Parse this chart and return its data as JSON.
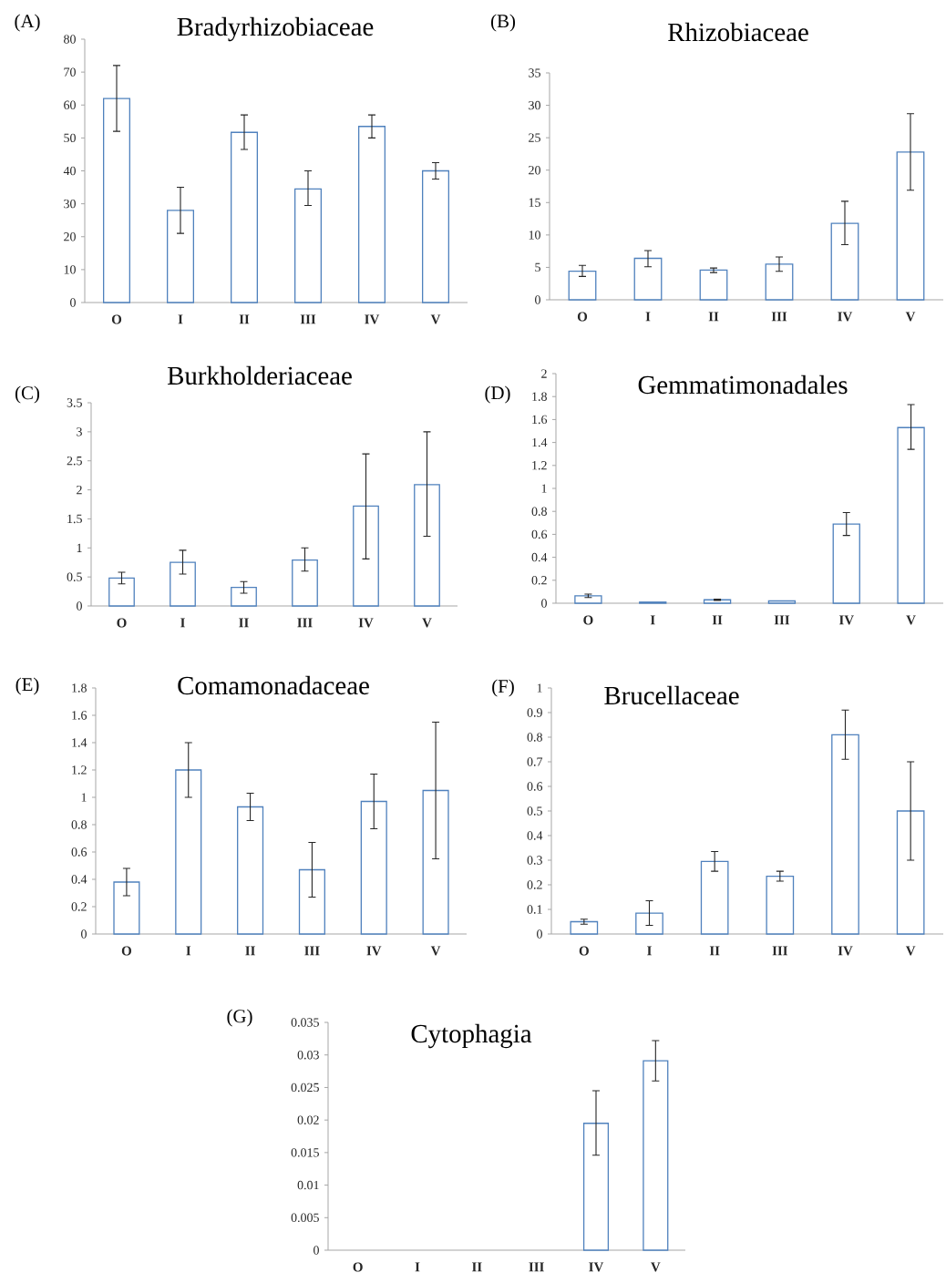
{
  "chart_data": [
    {
      "type": "bar",
      "title": "Bradyrhizobiaceae",
      "annotations": [
        "(A)"
      ],
      "categories": [
        "O",
        "I",
        "II",
        "III",
        "IV",
        "V"
      ],
      "values": [
        62,
        28,
        51.7,
        34.5,
        53.5,
        40
      ],
      "errors": [
        [
          52,
          72
        ],
        [
          21,
          35
        ],
        [
          46.5,
          57
        ],
        [
          29.5,
          40
        ],
        [
          50,
          57
        ],
        [
          37.5,
          42.5
        ]
      ],
      "color": "#4f81bd",
      "ylim": [
        0,
        80
      ],
      "yticks": [
        0,
        10,
        20,
        30,
        40,
        50,
        60,
        70,
        80
      ]
    },
    {
      "type": "bar",
      "title": "Rhizobiaceae",
      "annotations": [
        "(B)"
      ],
      "categories": [
        "O",
        "I",
        "II",
        "III",
        "IV",
        "V"
      ],
      "values": [
        4.4,
        6.4,
        4.6,
        5.5,
        11.8,
        22.8
      ],
      "errors": [
        [
          3.6,
          5.3
        ],
        [
          5.1,
          7.6
        ],
        [
          4.2,
          4.9
        ],
        [
          4.4,
          6.6
        ],
        [
          8.5,
          15.2
        ],
        [
          16.9,
          28.7
        ]
      ],
      "color": "#4f81bd",
      "ylim": [
        0,
        35
      ],
      "yticks": [
        0,
        5,
        10,
        15,
        20,
        25,
        30,
        35
      ]
    },
    {
      "type": "bar",
      "title": "Burkholderiaceae",
      "annotations": [
        "(C)"
      ],
      "categories": [
        "O",
        "I",
        "II",
        "III",
        "IV",
        "V"
      ],
      "values": [
        0.48,
        0.75,
        0.32,
        0.79,
        1.72,
        2.09
      ],
      "errors": [
        [
          0.38,
          0.58
        ],
        [
          0.55,
          0.96
        ],
        [
          0.22,
          0.42
        ],
        [
          0.6,
          1.0
        ],
        [
          0.81,
          2.62
        ],
        [
          1.2,
          3.0
        ]
      ],
      "color": "#4f81bd",
      "ylim": [
        0,
        3.5
      ],
      "yticks": [
        0,
        0.5,
        1,
        1.5,
        2,
        2.5,
        3,
        3.5
      ]
    },
    {
      "type": "bar",
      "title": "Gemmatimonadales",
      "annotations": [
        "(D)"
      ],
      "categories": [
        "O",
        "I",
        "II",
        "III",
        "IV",
        "V"
      ],
      "values": [
        0.065,
        0.01,
        0.03,
        0.02,
        0.69,
        1.53
      ],
      "errors": [
        [
          0.05,
          0.08
        ],
        null,
        [
          0.025,
          0.035
        ],
        null,
        [
          0.59,
          0.79
        ],
        [
          1.34,
          1.73
        ]
      ],
      "color": "#4f81bd",
      "ylim": [
        0,
        2
      ],
      "yticks": [
        0,
        0.2,
        0.4,
        0.6,
        0.8,
        1,
        1.2,
        1.4,
        1.6,
        1.8,
        2
      ]
    },
    {
      "type": "bar",
      "title": "Comamonadaceae",
      "annotations": [
        "(E)"
      ],
      "categories": [
        "O",
        "I",
        "II",
        "III",
        "IV",
        "V"
      ],
      "values": [
        0.38,
        1.2,
        0.93,
        0.47,
        0.97,
        1.05
      ],
      "errors": [
        [
          0.28,
          0.48
        ],
        [
          1.0,
          1.4
        ],
        [
          0.83,
          1.03
        ],
        [
          0.27,
          0.67
        ],
        [
          0.77,
          1.17
        ],
        [
          0.55,
          1.55
        ]
      ],
      "color": "#4f81bd",
      "ylim": [
        0,
        1.8
      ],
      "yticks": [
        0,
        0.2,
        0.4,
        0.6,
        0.8,
        1,
        1.2,
        1.4,
        1.6,
        1.8
      ]
    },
    {
      "type": "bar",
      "title": "Brucellaceae",
      "annotations": [
        "(F)"
      ],
      "categories": [
        "O",
        "I",
        "II",
        "III",
        "IV",
        "V"
      ],
      "values": [
        0.05,
        0.085,
        0.295,
        0.235,
        0.81,
        0.5
      ],
      "errors": [
        [
          0.04,
          0.06
        ],
        [
          0.035,
          0.135
        ],
        [
          0.255,
          0.335
        ],
        [
          0.215,
          0.255
        ],
        [
          0.71,
          0.91
        ],
        [
          0.3,
          0.7
        ]
      ],
      "color": "#4f81bd",
      "ylim": [
        0,
        1
      ],
      "yticks": [
        0,
        0.1,
        0.2,
        0.3,
        0.4,
        0.5,
        0.6,
        0.7,
        0.8,
        0.9,
        1
      ]
    },
    {
      "type": "bar",
      "title": "Cytophagia",
      "annotations": [
        "(G)"
      ],
      "categories": [
        "O",
        "I",
        "II",
        "III",
        "IV",
        "V"
      ],
      "values": [
        null,
        null,
        null,
        null,
        0.0195,
        0.0291
      ],
      "errors": [
        null,
        null,
        null,
        null,
        [
          0.0146,
          0.0245
        ],
        [
          0.026,
          0.0322
        ]
      ],
      "color": "#4f81bd",
      "ylim": [
        0,
        0.035
      ],
      "yticks": [
        0,
        0.005,
        0.01,
        0.015,
        0.02,
        0.025,
        0.03,
        0.035
      ]
    }
  ]
}
